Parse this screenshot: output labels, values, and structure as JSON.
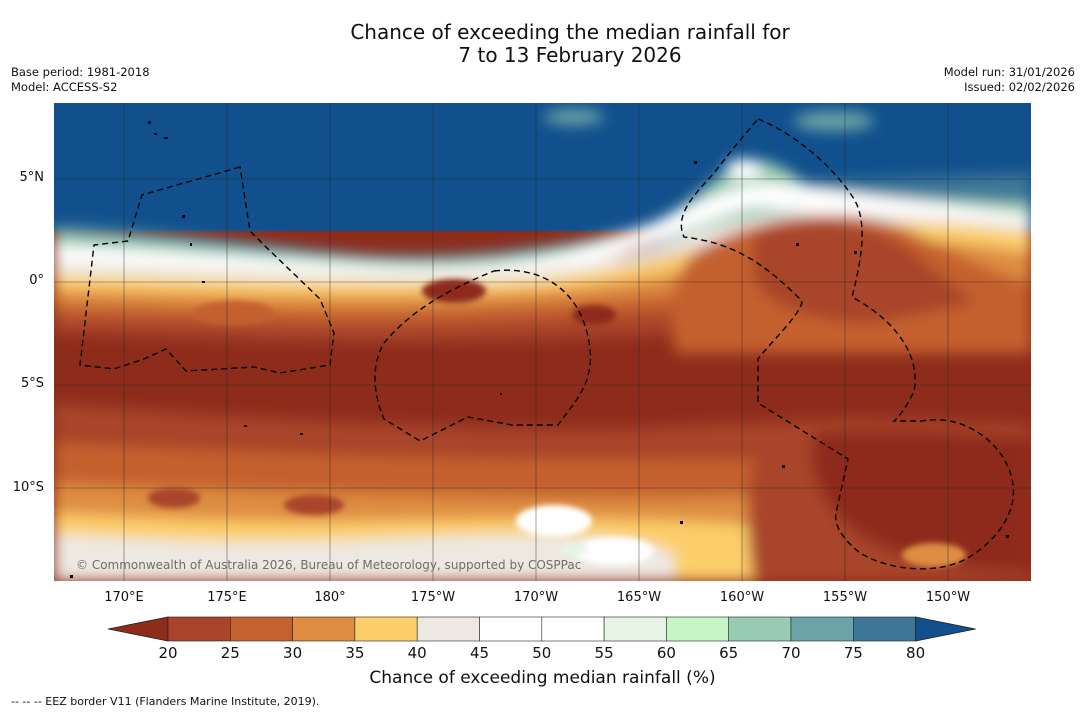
{
  "title": {
    "line1": "Chance of exceeding the median rainfall for",
    "line2": "7 to 13 February 2026"
  },
  "meta_left": {
    "base_period": "Base period: 1981-2018",
    "model": "Model: ACCESS-S2"
  },
  "meta_right": {
    "model_run": "Model run: 31/01/2026",
    "issued": "Issued: 02/02/2026"
  },
  "map": {
    "lat_labels": [
      "5°N",
      "0°",
      "5°S",
      "10°S"
    ],
    "lon_labels": [
      "170°E",
      "175°E",
      "180°",
      "175°W",
      "170°W",
      "165°W",
      "160°W",
      "155°W",
      "150°W"
    ],
    "copyright": "© Commonwealth of Australia 2026, Bureau of Meteorology, supported by COSPPac"
  },
  "colorbar": {
    "ticks": [
      "20",
      "25",
      "30",
      "35",
      "40",
      "45",
      "50",
      "55",
      "60",
      "65",
      "70",
      "75",
      "80"
    ],
    "colors": [
      "#8e2c1c",
      "#a8442a",
      "#c4612f",
      "#de8d43",
      "#fcce6a",
      "#ede9e2",
      "#ffffff",
      "#ffffff",
      "#e6f4e6",
      "#c6f5c6",
      "#99cbb2",
      "#6ba3a6",
      "#3e7798",
      "#11508d"
    ],
    "title": "Chance of exceeding median rainfall (%)"
  },
  "legend_note": "--  --  -- EEZ border V11 (Flanders Marine Institute, 2019)."
}
